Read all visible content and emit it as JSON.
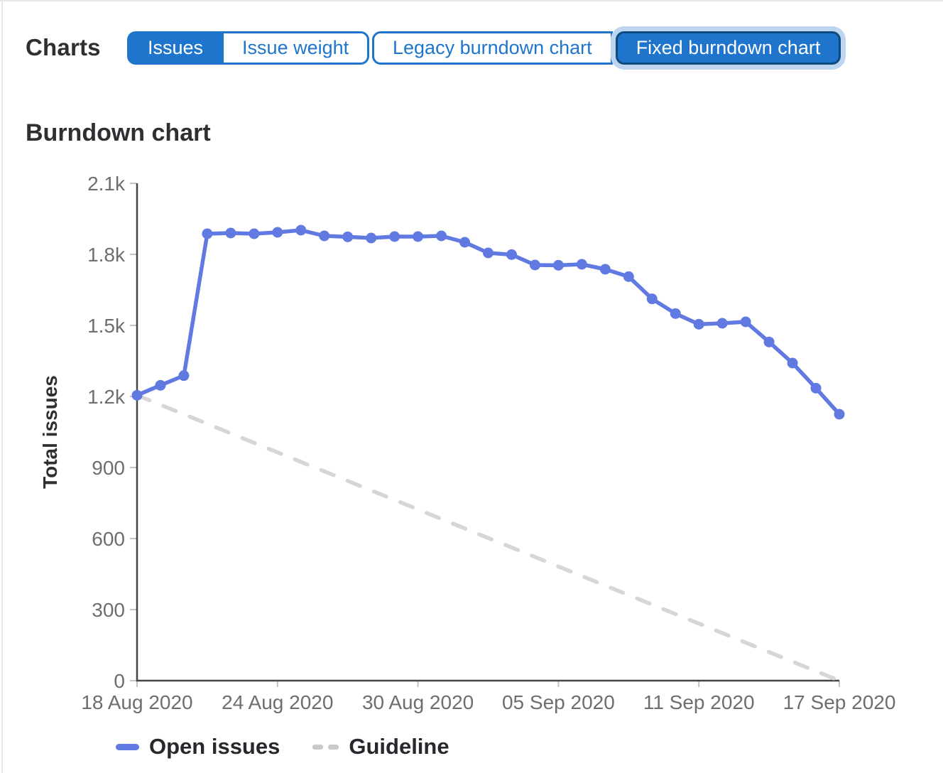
{
  "header": {
    "charts_label": "Charts",
    "issues_toggle": {
      "options": [
        "Issues",
        "Issue weight"
      ],
      "selected": "Issues"
    },
    "chart_type_toggle": {
      "options": [
        "Legacy burndown chart",
        "Fixed burndown chart"
      ],
      "selected": "Fixed burndown chart"
    }
  },
  "section_title": "Burndown chart",
  "colors": {
    "accent": "#1f75cb",
    "selected_border": "#0d4a7d",
    "focus_ring": "#bdd5ef",
    "series_blue": "#617ae2",
    "guideline_gray": "#d6d6d6"
  },
  "chart_data": {
    "type": "line",
    "title": "Burndown chart",
    "xlabel": "",
    "ylabel": "Total issues",
    "ylim": [
      0,
      2100
    ],
    "grid": false,
    "legend_position": "bottom-left",
    "x_ticks": [
      {
        "index": 0,
        "label": "18 Aug 2020"
      },
      {
        "index": 6,
        "label": "24 Aug 2020"
      },
      {
        "index": 12,
        "label": "30 Aug 2020"
      },
      {
        "index": 18,
        "label": "05 Sep 2020"
      },
      {
        "index": 24,
        "label": "11 Sep 2020"
      },
      {
        "index": 30,
        "label": "17 Sep 2020"
      }
    ],
    "y_ticks": [
      {
        "value": 0,
        "label": "0"
      },
      {
        "value": 300,
        "label": "300"
      },
      {
        "value": 600,
        "label": "600"
      },
      {
        "value": 900,
        "label": "900"
      },
      {
        "value": 1200,
        "label": "1.2k"
      },
      {
        "value": 1500,
        "label": "1.5k"
      },
      {
        "value": 1800,
        "label": "1.8k"
      },
      {
        "value": 2100,
        "label": "2.1k"
      }
    ],
    "series": [
      {
        "name": "Open issues",
        "values": [
          1205,
          1247,
          1288,
          1887,
          1890,
          1887,
          1893,
          1902,
          1878,
          1874,
          1869,
          1875,
          1875,
          1878,
          1851,
          1806,
          1799,
          1755,
          1754,
          1758,
          1737,
          1706,
          1612,
          1550,
          1505,
          1509,
          1515,
          1430,
          1341,
          1235,
          1125
        ]
      }
    ],
    "guideline": {
      "name": "Guideline",
      "start": 1205,
      "end": 0
    },
    "legend": [
      {
        "label": "Open issues",
        "swatch": "solid-line-blue"
      },
      {
        "label": "Guideline",
        "swatch": "dashed-line-gray"
      }
    ]
  }
}
